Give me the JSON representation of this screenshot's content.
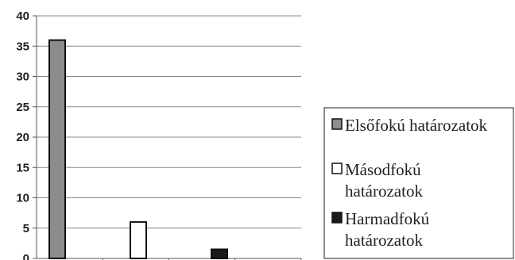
{
  "chart_data": {
    "type": "bar",
    "title": "",
    "xlabel": "",
    "ylabel": "",
    "ylim": [
      0,
      40
    ],
    "yticks": [
      0,
      5,
      10,
      15,
      20,
      25,
      30,
      35,
      40
    ],
    "grid": "horizontal",
    "legend_position": "right",
    "series": [
      {
        "name": "Elsőfokú határozatok",
        "values": [
          36,
          null,
          null
        ],
        "color": "#8c8c8c",
        "legend_lines": [
          "Elsőfokú határozatok"
        ]
      },
      {
        "name": "Másodfokú határozatok",
        "values": [
          null,
          6,
          null
        ],
        "color": "#ffffff",
        "legend_lines": [
          "Másodfokú",
          "határozatok"
        ]
      },
      {
        "name": "Harmadfokú határozatok",
        "values": [
          null,
          null,
          1.5
        ],
        "color": "#1a1a1a",
        "legend_lines": [
          "Harmadfokú",
          "határozatok"
        ]
      }
    ]
  }
}
